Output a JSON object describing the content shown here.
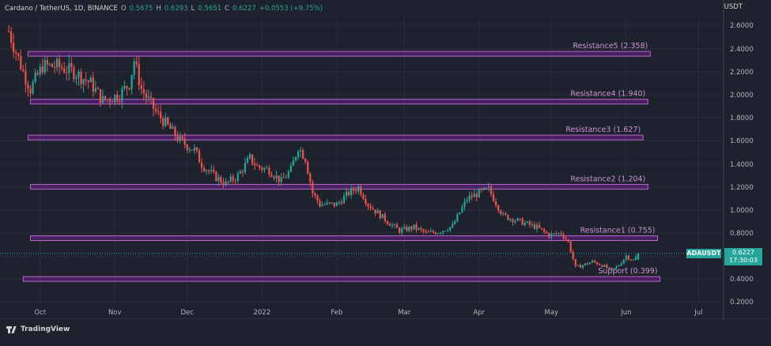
{
  "header": {
    "pair": "Cardano / TetherUS, 1D, BINANCE",
    "o_label": "O",
    "o_val": "0.5675",
    "h_label": "H",
    "h_val": "0.6293",
    "l_label": "L",
    "l_val": "0.5651",
    "c_label": "C",
    "c_val": "0.6227",
    "change": "+0.0553 (+9.75%)"
  },
  "currency": "USDT",
  "symbol_badge": "ADAUSDT",
  "last_price": "0.6227",
  "countdown": "17:30:03",
  "brand": "TradingView",
  "colors": {
    "background": "#1e222d",
    "up": "#26a69a",
    "down": "#ef5350",
    "zone_fill": "#7b1fa2",
    "zone_border": "#ba68c8",
    "zone_text": "#ce93d8"
  },
  "chart_data": {
    "type": "candlestick",
    "title": "Cardano / TetherUS, 1D, BINANCE",
    "y_scale": "log",
    "ylim": [
      0.2,
      2.8
    ],
    "y_ticks": [
      "2.6000",
      "2.4000",
      "2.2000",
      "2.0000",
      "1.8000",
      "1.6000",
      "1.4000",
      "1.2000",
      "1.0000",
      "0.8000",
      "0.6000",
      "0.4000",
      "0.2000"
    ],
    "y_tick_values": [
      2.6,
      2.4,
      2.2,
      2.0,
      1.8,
      1.6,
      1.4,
      1.2,
      1.0,
      0.8,
      0.6,
      0.4,
      0.2
    ],
    "x_ticks": [
      {
        "label": "Oct",
        "date": "2021-10-01"
      },
      {
        "label": "Nov",
        "date": "2021-11-01"
      },
      {
        "label": "Dec",
        "date": "2021-12-01"
      },
      {
        "label": "2022",
        "date": "2022-01-01"
      },
      {
        "label": "Feb",
        "date": "2022-02-01"
      },
      {
        "label": "Mar",
        "date": "2022-03-01"
      },
      {
        "label": "Apr",
        "date": "2022-04-01"
      },
      {
        "label": "May",
        "date": "2022-05-01"
      },
      {
        "label": "Jun",
        "date": "2022-06-01"
      },
      {
        "label": "Jul",
        "date": "2022-07-01"
      }
    ],
    "zones": [
      {
        "label": "Resistance5 (2.358)",
        "level": 2.358,
        "start": "2021-09-26",
        "end": "2022-06-11"
      },
      {
        "label": "Resistance4 (1.940)",
        "level": 1.94,
        "start": "2021-09-27",
        "end": "2022-06-10"
      },
      {
        "label": "Resistance3 (1.627)",
        "level": 1.627,
        "start": "2021-09-26",
        "end": "2022-06-08"
      },
      {
        "label": "Resistance2 (1.204)",
        "level": 1.204,
        "start": "2021-09-27",
        "end": "2022-06-10"
      },
      {
        "label": "Resistance1 (0.755)",
        "level": 0.755,
        "start": "2021-09-27",
        "end": "2022-06-14"
      },
      {
        "label": "Support (0.399)",
        "level": 0.399,
        "start": "2021-09-24",
        "end": "2022-06-15"
      }
    ],
    "close_waypoints": [
      [
        "2021-09-18",
        2.55
      ],
      [
        "2021-09-24",
        2.2
      ],
      [
        "2021-09-27",
        2.05
      ],
      [
        "2021-10-02",
        2.25
      ],
      [
        "2021-10-08",
        2.25
      ],
      [
        "2021-10-15",
        2.2
      ],
      [
        "2021-10-22",
        2.1
      ],
      [
        "2021-10-27",
        1.95
      ],
      [
        "2021-11-03",
        2.0
      ],
      [
        "2021-11-07",
        2.1
      ],
      [
        "2021-11-09",
        2.3
      ],
      [
        "2021-11-12",
        2.05
      ],
      [
        "2021-11-18",
        1.85
      ],
      [
        "2021-11-22",
        1.75
      ],
      [
        "2021-11-28",
        1.6
      ],
      [
        "2021-12-04",
        1.52
      ],
      [
        "2021-12-07",
        1.4
      ],
      [
        "2021-12-12",
        1.3
      ],
      [
        "2021-12-17",
        1.23
      ],
      [
        "2021-12-22",
        1.3
      ],
      [
        "2021-12-27",
        1.45
      ],
      [
        "2021-12-30",
        1.38
      ],
      [
        "2022-01-04",
        1.35
      ],
      [
        "2022-01-09",
        1.25
      ],
      [
        "2022-01-13",
        1.35
      ],
      [
        "2022-01-16",
        1.55
      ],
      [
        "2022-01-19",
        1.45
      ],
      [
        "2022-01-22",
        1.15
      ],
      [
        "2022-01-25",
        1.05
      ],
      [
        "2022-02-01",
        1.05
      ],
      [
        "2022-02-06",
        1.15
      ],
      [
        "2022-02-10",
        1.2
      ],
      [
        "2022-02-14",
        1.05
      ],
      [
        "2022-02-22",
        0.9
      ],
      [
        "2022-02-27",
        0.82
      ],
      [
        "2022-03-05",
        0.85
      ],
      [
        "2022-03-10",
        0.8
      ],
      [
        "2022-03-15",
        0.81
      ],
      [
        "2022-03-21",
        0.86
      ],
      [
        "2022-03-27",
        1.1
      ],
      [
        "2022-04-01",
        1.15
      ],
      [
        "2022-04-05",
        1.18
      ],
      [
        "2022-04-11",
        0.95
      ],
      [
        "2022-04-18",
        0.9
      ],
      [
        "2022-04-25",
        0.85
      ],
      [
        "2022-04-30",
        0.78
      ],
      [
        "2022-05-05",
        0.8
      ],
      [
        "2022-05-08",
        0.72
      ],
      [
        "2022-05-11",
        0.5
      ],
      [
        "2022-05-14",
        0.52
      ],
      [
        "2022-05-18",
        0.55
      ],
      [
        "2022-05-22",
        0.52
      ],
      [
        "2022-05-26",
        0.47
      ],
      [
        "2022-05-29",
        0.52
      ],
      [
        "2022-06-01",
        0.6
      ],
      [
        "2022-06-04",
        0.56
      ],
      [
        "2022-06-06",
        0.62
      ]
    ],
    "last_candle": {
      "date": "2022-06-06",
      "open": 0.5675,
      "high": 0.6293,
      "low": 0.5651,
      "close": 0.6227
    }
  }
}
